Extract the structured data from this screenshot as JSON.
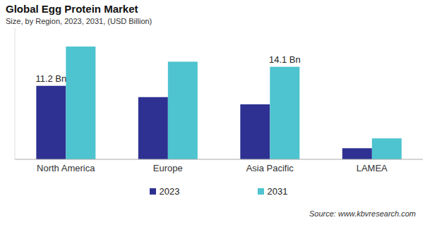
{
  "chart_data": {
    "type": "bar",
    "title": "Global Egg Protein Market",
    "subtitle": "Size, by Region, 2023, 2031, (USD Billion)",
    "source": "Source: www.kbvresearch.com",
    "categories": [
      "North America",
      "Europe",
      "Asia Pacific",
      "LAMEA"
    ],
    "series": [
      {
        "name": "2023",
        "color": "#2e3192",
        "values": [
          11.2,
          9.5,
          8.4,
          1.7
        ],
        "value_labels": [
          "11.2 Bn",
          null,
          null,
          null
        ]
      },
      {
        "name": "2031",
        "color": "#4dc4cf",
        "values": [
          17.2,
          14.9,
          14.1,
          3.2
        ],
        "value_labels": [
          null,
          null,
          "14.1 Bn",
          null
        ]
      }
    ],
    "ylim": [
      0,
      20
    ],
    "grid": false,
    "legend": "bottom",
    "data_labels": true,
    "tick_labels": "x"
  }
}
